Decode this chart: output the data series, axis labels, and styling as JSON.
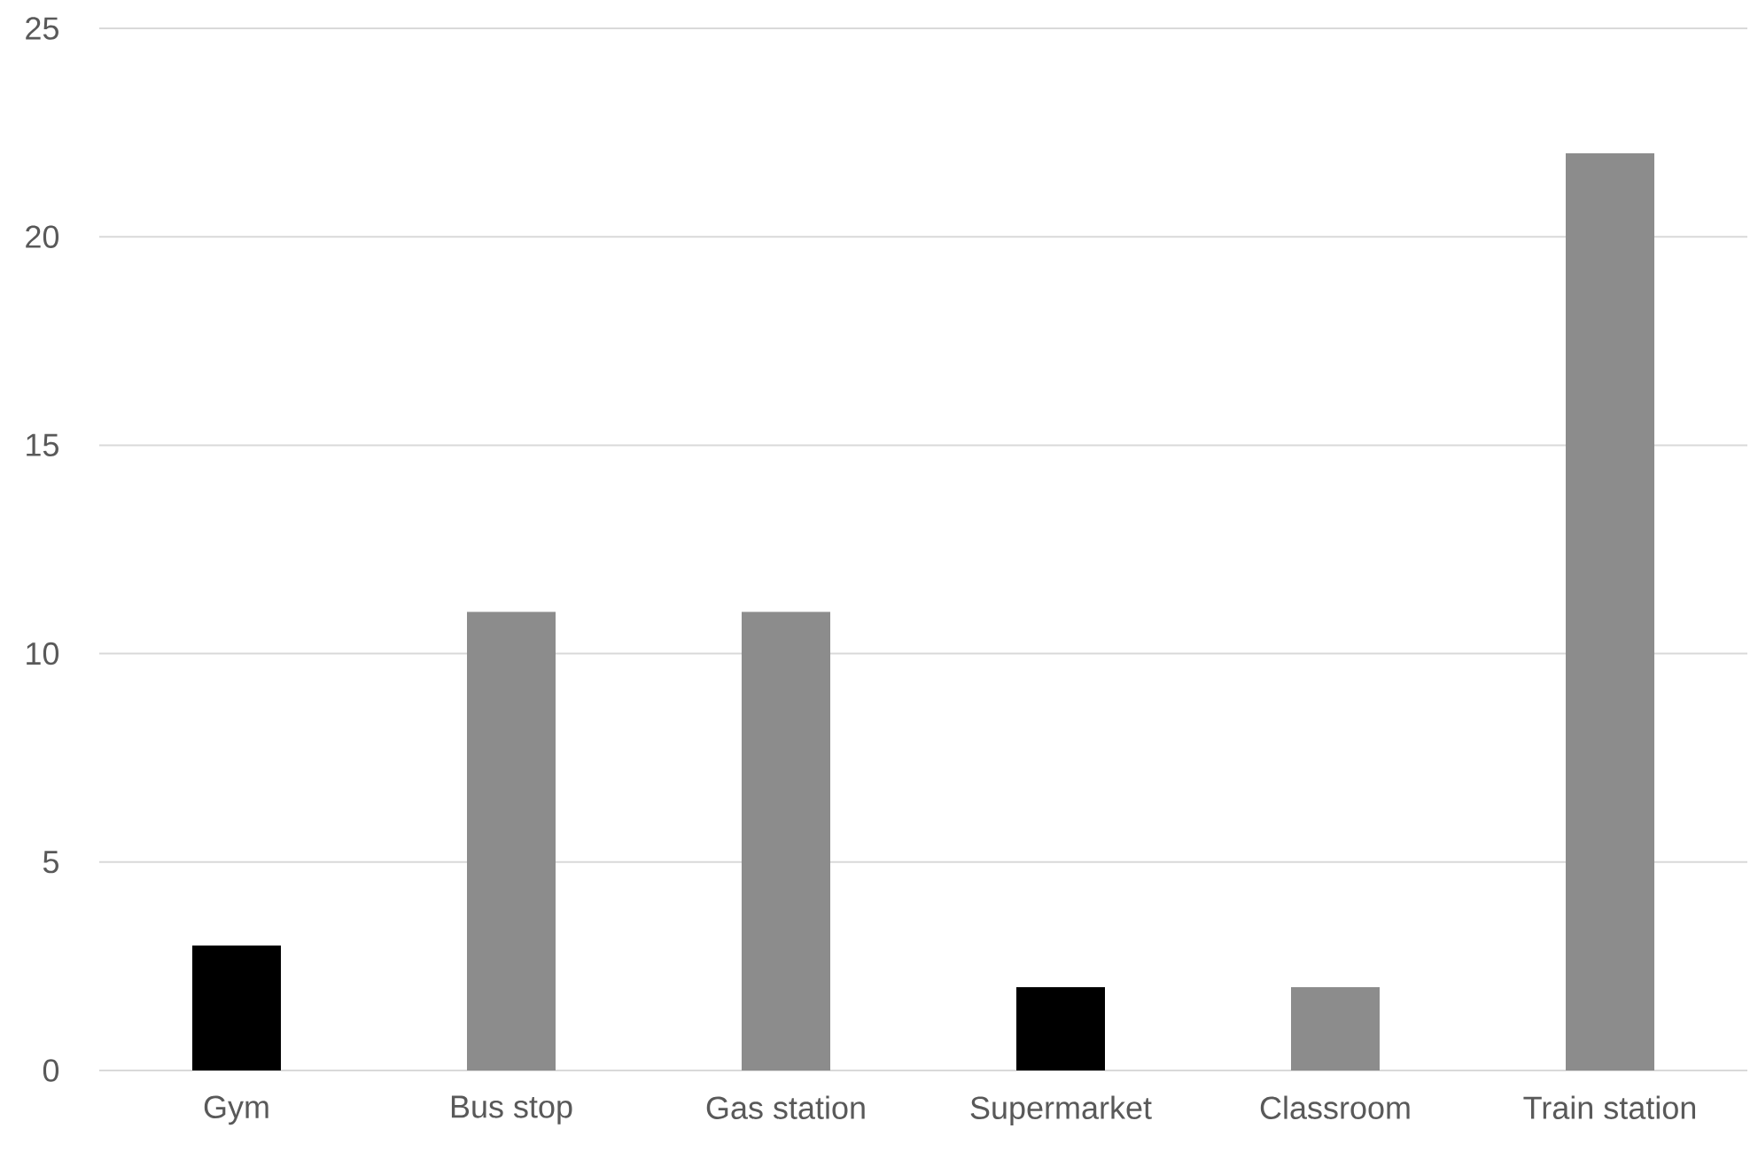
{
  "chart_data": {
    "type": "bar",
    "categories": [
      "Gym",
      "Bus stop",
      "Gas station",
      "Supermarket",
      "Classroom",
      "Train station"
    ],
    "values": [
      3,
      11,
      11,
      2,
      2,
      22
    ],
    "colors": [
      "#000000",
      "#8c8c8c",
      "#8c8c8c",
      "#000000",
      "#8c8c8c",
      "#8c8c8c"
    ],
    "ylim": [
      0,
      25
    ],
    "yticks": [
      0,
      5,
      10,
      15,
      20,
      25
    ],
    "grid": "y"
  }
}
